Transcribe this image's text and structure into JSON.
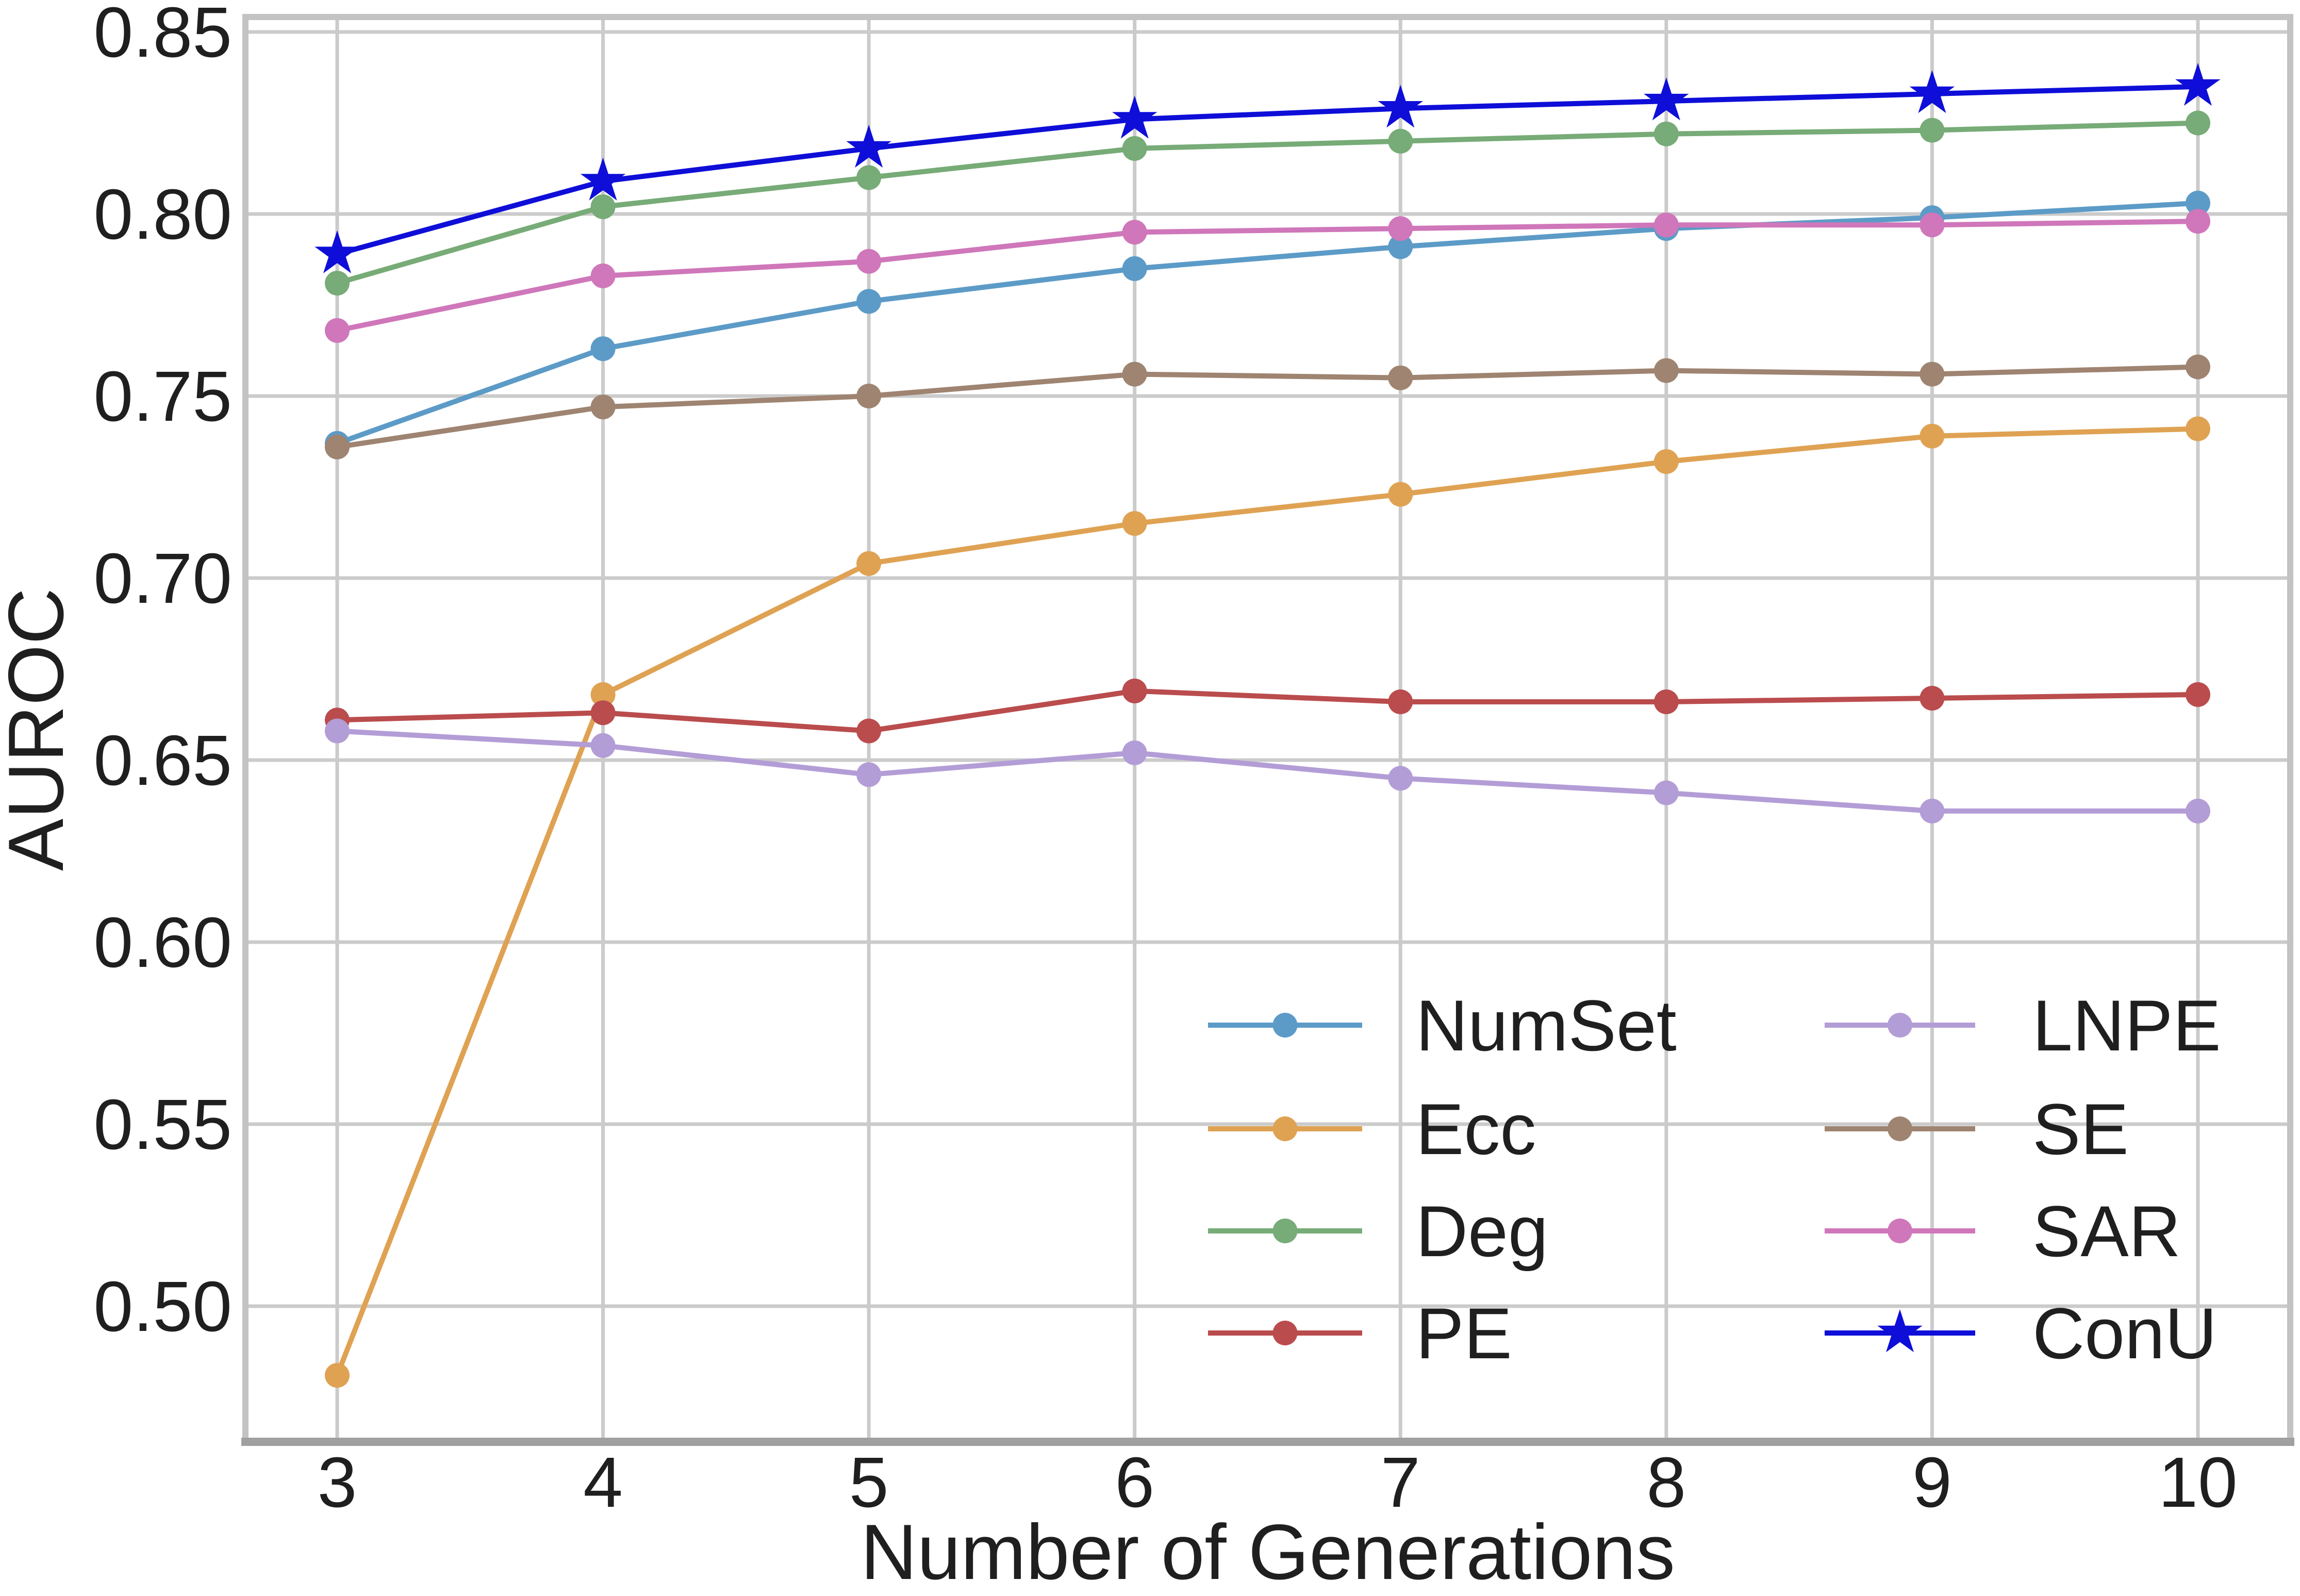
{
  "chart_data": {
    "type": "line",
    "title": "",
    "xlabel": "Number of Generations",
    "ylabel": "AUROC",
    "x": [
      3,
      4,
      5,
      6,
      7,
      8,
      9,
      10
    ],
    "xtick_labels": [
      "3",
      "4",
      "5",
      "6",
      "7",
      "8",
      "9",
      "10"
    ],
    "yticks": [
      0.5,
      0.55,
      0.6,
      0.65,
      0.7,
      0.75,
      0.8,
      0.85
    ],
    "ytick_labels": [
      "0.50",
      "0.55",
      "0.60",
      "0.65",
      "0.70",
      "0.75",
      "0.80",
      "0.85"
    ],
    "xlim": [
      2.65,
      10.35
    ],
    "ylim": [
      0.463,
      0.854
    ],
    "grid": true,
    "legend": {
      "position": "lower-right-inside",
      "frame": false,
      "columns": [
        [
          "NumSet",
          "Ecc",
          "Deg",
          "PE"
        ],
        [
          "LNPE",
          "SE",
          "SAR",
          "ConU"
        ]
      ]
    },
    "series": [
      {
        "name": "NumSet",
        "color": "#5C9BC7",
        "marker": "circle",
        "values": [
          0.737,
          0.763,
          0.776,
          0.785,
          0.791,
          0.796,
          0.799,
          0.803
        ]
      },
      {
        "name": "Ecc",
        "color": "#DFA253",
        "marker": "circle",
        "values": [
          0.481,
          0.668,
          0.704,
          0.715,
          0.723,
          0.732,
          0.739,
          0.741
        ]
      },
      {
        "name": "Deg",
        "color": "#77AB77",
        "marker": "circle",
        "values": [
          0.781,
          0.802,
          0.81,
          0.818,
          0.82,
          0.822,
          0.823,
          0.825
        ]
      },
      {
        "name": "PE",
        "color": "#BA4C4D",
        "marker": "circle",
        "values": [
          0.661,
          0.663,
          0.658,
          0.669,
          0.666,
          0.666,
          0.667,
          0.668
        ]
      },
      {
        "name": "LNPE",
        "color": "#B39DD6",
        "marker": "circle",
        "values": [
          0.658,
          0.654,
          0.646,
          0.652,
          0.645,
          0.641,
          0.636,
          0.636
        ]
      },
      {
        "name": "SE",
        "color": "#9E8471",
        "marker": "circle",
        "values": [
          0.736,
          0.747,
          0.75,
          0.756,
          0.755,
          0.757,
          0.756,
          0.758
        ]
      },
      {
        "name": "SAR",
        "color": "#CF77BA",
        "marker": "circle",
        "values": [
          0.768,
          0.783,
          0.787,
          0.795,
          0.796,
          0.797,
          0.797,
          0.798
        ]
      },
      {
        "name": "ConU",
        "color": "#0E0ED8",
        "marker": "star",
        "values": [
          0.789,
          0.809,
          0.818,
          0.826,
          0.829,
          0.831,
          0.833,
          0.835
        ]
      }
    ]
  }
}
